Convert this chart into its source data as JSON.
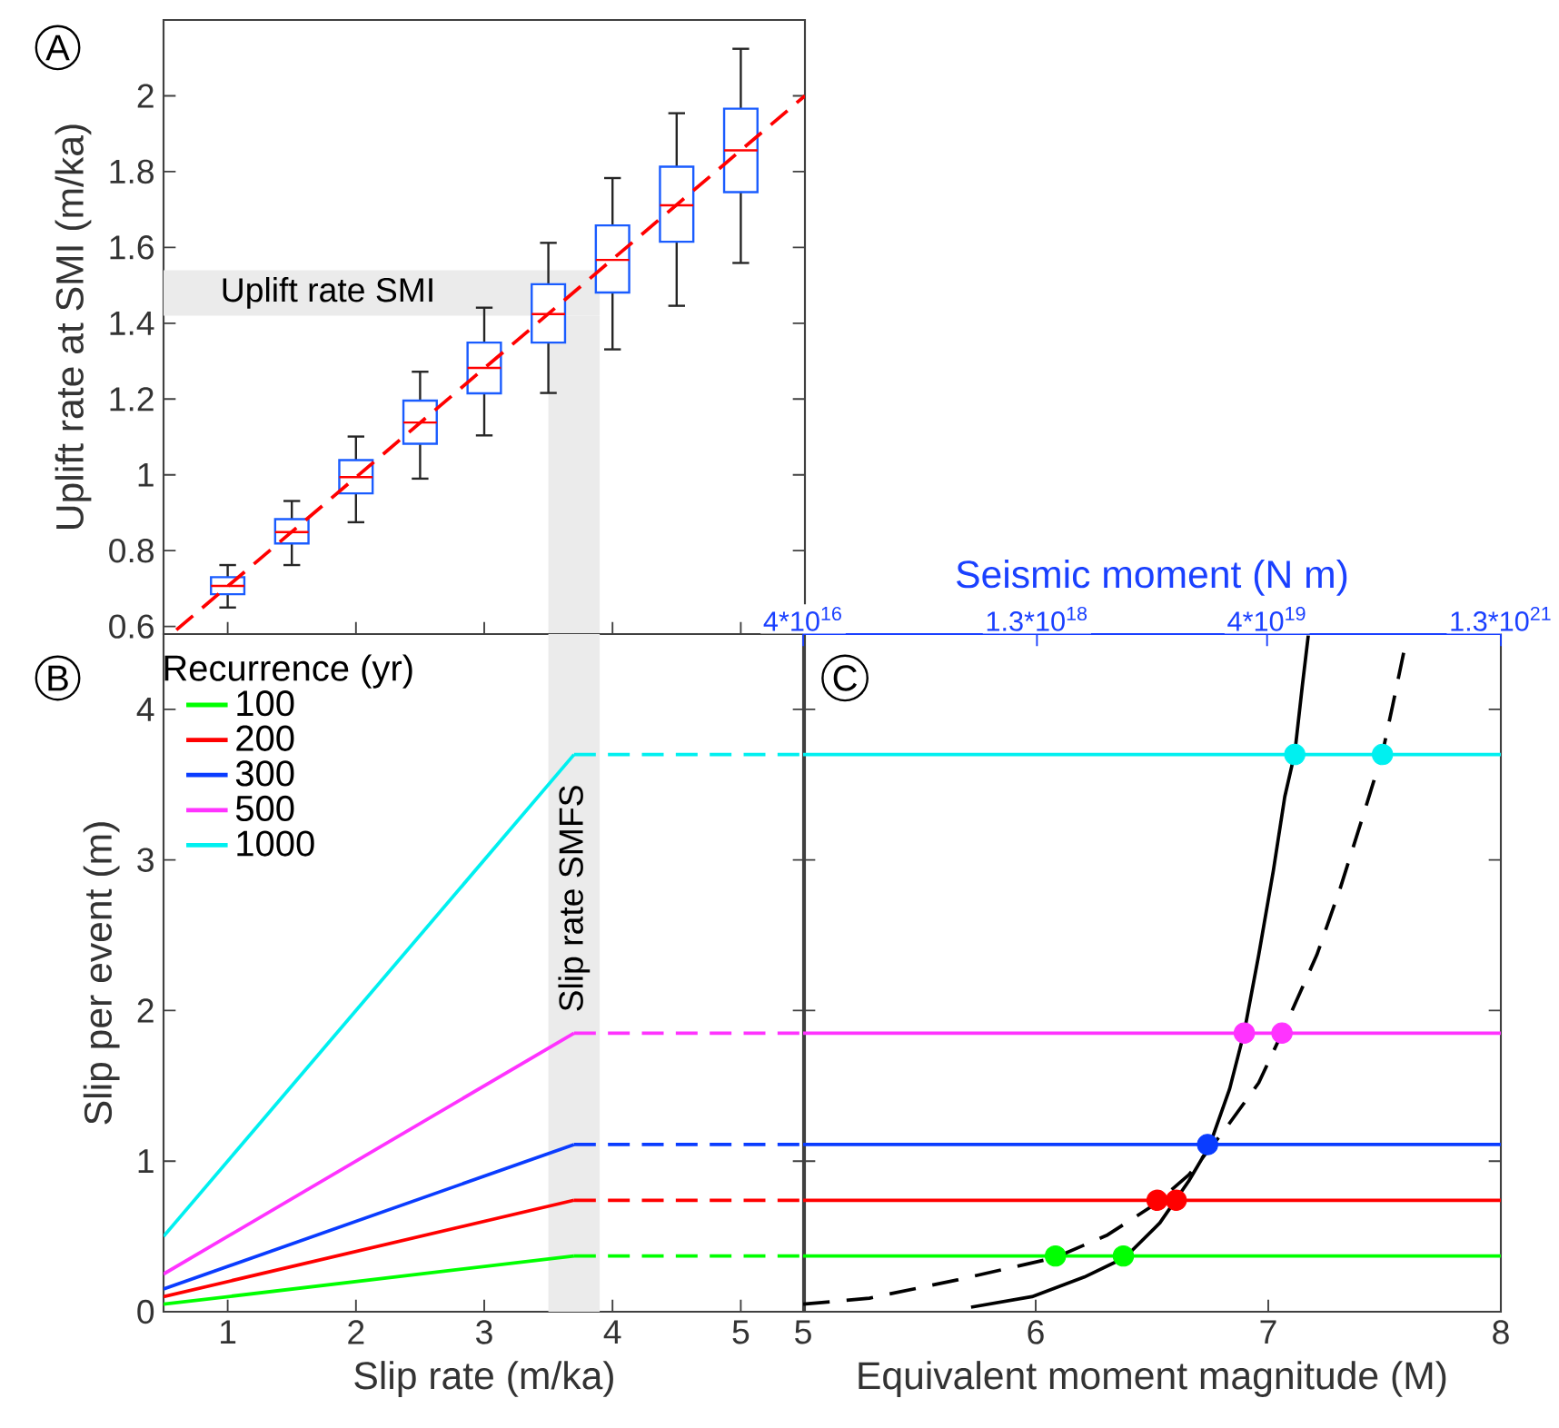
{
  "chart_data": [
    {
      "type": "box",
      "annotations": [
        "A"
      ],
      "ylabel": "Uplift rate at SMI (m/ka)",
      "xlim": [
        0.5,
        5.5
      ],
      "xticks": [
        {
          "value": 1,
          "label": null
        },
        {
          "value": 2,
          "label": null
        },
        {
          "value": 3,
          "label": null
        },
        {
          "value": 4,
          "label": null
        },
        {
          "value": 5,
          "label": null
        }
      ],
      "ylim": [
        0.58,
        2.2
      ],
      "yticks": [
        0.6,
        0.8,
        1,
        1.2,
        1.4,
        1.6,
        1.8,
        2
      ],
      "tick_labels": "y",
      "bands": [
        {
          "axis": "y",
          "from": 1.42,
          "to": 1.54,
          "label": "Uplift rate SMI",
          "color": "#ebebeb"
        },
        {
          "axis": "x",
          "from": 3.5,
          "to": 3.9,
          "color": "#ebebeb"
        }
      ],
      "series": [
        {
          "type": "box",
          "color": "#1a5cff",
          "x": [
            1,
            1.5,
            2,
            2.5,
            3,
            3.5,
            4,
            4.5,
            5
          ],
          "boxes": [
            {
              "low": 0.65,
              "q1": 0.685,
              "median": 0.707,
              "q3": 0.73,
              "high": 0.762
            },
            {
              "low": 0.762,
              "q1": 0.819,
              "median": 0.849,
              "q3": 0.883,
              "high": 0.931
            },
            {
              "low": 0.875,
              "q1": 0.951,
              "median": 0.994,
              "q3": 1.039,
              "high": 1.101
            },
            {
              "low": 0.99,
              "q1": 1.082,
              "median": 1.138,
              "q3": 1.196,
              "high": 1.272
            },
            {
              "low": 1.104,
              "q1": 1.215,
              "median": 1.282,
              "q3": 1.349,
              "high": 1.441
            },
            {
              "low": 1.216,
              "q1": 1.349,
              "median": 1.424,
              "q3": 1.503,
              "high": 1.612
            },
            {
              "low": 1.331,
              "q1": 1.481,
              "median": 1.567,
              "q3": 1.658,
              "high": 1.783
            },
            {
              "low": 1.446,
              "q1": 1.615,
              "median": 1.711,
              "q3": 1.813,
              "high": 1.954
            },
            {
              "low": 1.559,
              "q1": 1.746,
              "median": 1.856,
              "q3": 1.966,
              "high": 2.124
            }
          ]
        },
        {
          "type": "line",
          "color": "#ff0000",
          "line_style": "dashed",
          "x": [
            0.6,
            5.5
          ],
          "values": [
            0.591,
            2.0
          ]
        }
      ]
    },
    {
      "type": "line",
      "annotations": [
        "B"
      ],
      "xlabel": "Slip rate (m/ka)",
      "ylabel": "Slip per event (m)",
      "xlim": [
        0.5,
        5.5
      ],
      "xticks": [
        1,
        2,
        3,
        4,
        5
      ],
      "ylim": [
        0,
        4.5
      ],
      "yticks": [
        0,
        1,
        2,
        3,
        4
      ],
      "legend": "top left",
      "legend_title": "Recurrence (yr)",
      "bands": [
        {
          "axis": "x",
          "from": 3.5,
          "to": 3.9,
          "label": "Slip rate SMFS",
          "color": "#ebebeb"
        }
      ],
      "series": [
        {
          "name": "100",
          "color": "#00ff00",
          "x": [
            0.5,
            3.7
          ],
          "values": [
            0.05,
            0.37
          ]
        },
        {
          "name": "200",
          "color": "#ff0000",
          "x": [
            0.5,
            3.7
          ],
          "values": [
            0.1,
            0.74
          ]
        },
        {
          "name": "300",
          "color": "#0a3cff",
          "x": [
            0.5,
            3.7
          ],
          "values": [
            0.15,
            1.11
          ]
        },
        {
          "name": "500",
          "color": "#ff33ff",
          "x": [
            0.5,
            3.7
          ],
          "values": [
            0.25,
            1.85
          ]
        },
        {
          "name": "1000",
          "color": "#00f0f0",
          "x": [
            0.5,
            3.7
          ],
          "values": [
            0.5,
            3.7
          ]
        },
        {
          "color": "#00ff00",
          "line_style": "dashed",
          "x": [
            3.7,
            5.5
          ],
          "values": [
            0.37,
            0.37
          ]
        },
        {
          "color": "#ff0000",
          "line_style": "dashed",
          "x": [
            3.7,
            5.5
          ],
          "values": [
            0.74,
            0.74
          ]
        },
        {
          "color": "#0a3cff",
          "line_style": "dashed",
          "x": [
            3.7,
            5.5
          ],
          "values": [
            1.11,
            1.11
          ]
        },
        {
          "color": "#ff33ff",
          "line_style": "dashed",
          "x": [
            3.7,
            5.5
          ],
          "values": [
            1.85,
            1.85
          ]
        },
        {
          "color": "#00f0f0",
          "line_style": "dashed",
          "x": [
            3.7,
            5.5
          ],
          "values": [
            3.7,
            3.7
          ]
        }
      ]
    },
    {
      "type": "line",
      "annotations": [
        "C"
      ],
      "xlabel": "Equivalent moment magnitude (M)",
      "x2label": "Seismic moment (N m)",
      "log": "x2",
      "xlim": [
        5,
        8
      ],
      "xticks": [
        5,
        6,
        7,
        8
      ],
      "x2lim": [
        4e+16,
        1.3e+21
      ],
      "x2ticks": [
        {
          "value": 4e+16,
          "label": "4*10$^{16}$"
        },
        {
          "value": 1.3e+18,
          "label": "1.3*10$^{18}$"
        },
        {
          "value": 4e+19,
          "label": "4*10$^{19}$"
        },
        {
          "value": 1.3e+21,
          "label": "1.3*10$^{21}$"
        }
      ],
      "ylim": [
        0,
        4.5
      ],
      "yticks": [
        0,
        1,
        2,
        3,
        4
      ],
      "tick_labels": "x",
      "series": [
        {
          "color": "#00ff00",
          "x": [
            5,
            8
          ],
          "values": [
            0.37,
            0.37
          ]
        },
        {
          "color": "#ff0000",
          "x": [
            5,
            8
          ],
          "values": [
            0.74,
            0.74
          ]
        },
        {
          "color": "#0a3cff",
          "x": [
            5,
            8
          ],
          "values": [
            1.11,
            1.11
          ]
        },
        {
          "color": "#ff33ff",
          "x": [
            5,
            8
          ],
          "values": [
            1.85,
            1.85
          ]
        },
        {
          "color": "#00f0f0",
          "x": [
            5,
            8
          ],
          "values": [
            3.7,
            3.7
          ]
        },
        {
          "color": "#000000",
          "x": [
            5.722,
            5.984,
            6.209,
            6.384,
            6.534,
            6.659,
            6.747,
            6.834,
            6.897,
            6.959,
            7.022,
            7.071,
            7.114,
            7.146,
            7.172
          ],
          "values": [
            0.03,
            0.1,
            0.23,
            0.36,
            0.59,
            0.87,
            1.1,
            1.48,
            1.86,
            2.37,
            2.93,
            3.42,
            3.71,
            4.15,
            4.49
          ]
        },
        {
          "color": "#000000",
          "line_style": "dashed",
          "x": [
            5.0,
            5.285,
            5.66,
            6.085,
            6.309,
            6.509,
            6.659,
            6.809,
            6.959,
            7.059,
            7.209,
            7.309,
            7.409,
            7.491,
            7.534,
            7.584
          ],
          "values": [
            0.05,
            0.09,
            0.21,
            0.36,
            0.51,
            0.71,
            0.91,
            1.2,
            1.52,
            1.85,
            2.37,
            2.81,
            3.3,
            3.71,
            4.02,
            4.39
          ]
        },
        {
          "type": "scatter",
          "marker": "circle",
          "color": "#00ff00",
          "x": [
            6.085,
            6.377
          ],
          "values": [
            0.37,
            0.37
          ]
        },
        {
          "type": "scatter",
          "marker": "circle",
          "color": "#ff0000",
          "x": [
            6.522,
            6.604
          ],
          "values": [
            0.74,
            0.74
          ]
        },
        {
          "type": "scatter",
          "marker": "circle",
          "color": "#0a3cff",
          "x": [
            6.739
          ],
          "values": [
            1.11
          ]
        },
        {
          "type": "scatter",
          "marker": "circle",
          "color": "#ff33ff",
          "x": [
            6.897,
            7.059
          ],
          "values": [
            1.85,
            1.85
          ]
        },
        {
          "type": "scatter",
          "marker": "circle",
          "color": "#00f0f0",
          "x": [
            7.114,
            7.491
          ],
          "values": [
            3.7,
            3.7
          ]
        }
      ]
    }
  ]
}
